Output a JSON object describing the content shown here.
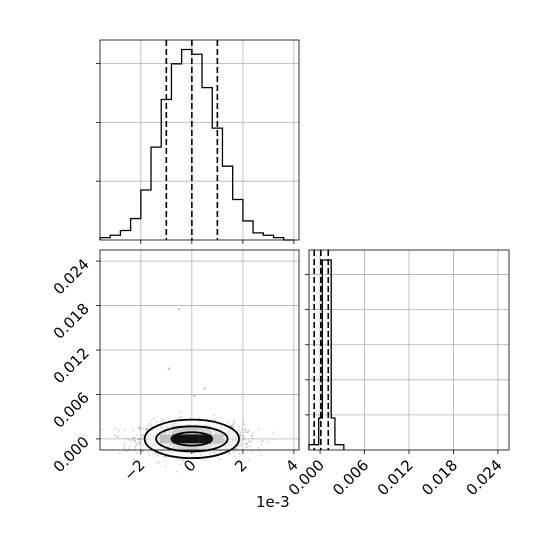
{
  "chart_data": [
    {
      "type": "histogram",
      "panel": "top-left",
      "variable_index": 0,
      "xlim": [
        -3.6,
        4.2
      ],
      "x_multiplier_label": "1e-3",
      "x_ticks": [
        -2,
        0,
        2,
        4
      ],
      "y_tick_count": 3,
      "grid": true,
      "bin_edges": [
        -3.6,
        -3.2,
        -2.8,
        -2.4,
        -2.0,
        -1.6,
        -1.2,
        -0.8,
        -0.4,
        0.0,
        0.4,
        0.8,
        1.2,
        1.6,
        2.0,
        2.4,
        2.8,
        3.2,
        3.6,
        4.0
      ],
      "counts": [
        1,
        2,
        4,
        9,
        21,
        39,
        59,
        74,
        80,
        78,
        64,
        47,
        31,
        17,
        8,
        3,
        2,
        1,
        0
      ],
      "ymax": 84,
      "quantiles": [
        -1.0,
        0.0,
        1.0
      ]
    },
    {
      "type": "histogram2d_contour",
      "panel": "bottom-left",
      "xlim": [
        -3.6,
        4.2
      ],
      "ylim": [
        -0.0015,
        0.0255
      ],
      "x_ticks": [
        -2,
        0,
        2,
        4
      ],
      "x_ticks_label": [
        "−2",
        "0",
        "2",
        "4"
      ],
      "x_multiplier_label": "1e-3",
      "y_ticks": [
        0.0,
        0.006,
        0.012,
        0.018,
        0.024
      ],
      "y_ticks_label": [
        "0.000",
        "0.006",
        "0.012",
        "0.018",
        "0.024"
      ],
      "grid": true,
      "center": [
        0.0,
        0.0
      ],
      "contour_levels": [
        {
          "rx": 0.8,
          "ry": 0.0009
        },
        {
          "rx": 1.4,
          "ry": 0.0017
        },
        {
          "rx": 1.85,
          "ry": 0.0026
        }
      ],
      "dense_cells": [
        {
          "x": -0.5,
          "y": 0.0,
          "v": 1.0
        },
        {
          "x": 0.0,
          "y": 0.0,
          "v": 1.0
        },
        {
          "x": 0.5,
          "y": 0.0,
          "v": 0.85
        },
        {
          "x": -1.0,
          "y": 0.0,
          "v": 0.55
        },
        {
          "x": 1.0,
          "y": 0.0,
          "v": 0.5
        },
        {
          "x": -0.5,
          "y": 0.0012,
          "v": 0.45
        },
        {
          "x": 0.0,
          "y": 0.0012,
          "v": 0.5
        },
        {
          "x": 0.5,
          "y": 0.0012,
          "v": 0.4
        },
        {
          "x": -0.5,
          "y": -0.0012,
          "v": 0.35
        },
        {
          "x": 0.0,
          "y": -0.0012,
          "v": 0.4
        },
        {
          "x": 0.5,
          "y": -0.0012,
          "v": 0.3
        }
      ],
      "outliers": [
        {
          "x": -0.5,
          "y": 0.0175
        },
        {
          "x": -0.9,
          "y": 0.0095
        },
        {
          "x": 0.5,
          "y": 0.0068
        },
        {
          "x": 0.1,
          "y": 0.0058
        }
      ]
    },
    {
      "type": "histogram",
      "panel": "bottom-right",
      "variable_index": 1,
      "xlim": [
        -0.0015,
        0.0255
      ],
      "x_ticks": [
        0.0,
        0.006,
        0.012,
        0.018,
        0.024
      ],
      "x_ticks_label": [
        "0.000",
        "0.006",
        "0.012",
        "0.018",
        "0.024"
      ],
      "y_tick_count": 5,
      "grid": true,
      "bin_edges": [
        -0.0015,
        0.0,
        0.0015,
        0.003,
        0.0045
      ],
      "counts": [
        2,
        48,
        285,
        0
      ],
      "extra_bins": [
        {
          "x0": -0.0015,
          "x1": -0.0002,
          "count": 8
        },
        {
          "x0": -0.0002,
          "x1": 0.0003,
          "count": 48
        },
        {
          "x0": 0.0003,
          "x1": 0.0015,
          "count": 285
        },
        {
          "x0": 0.0015,
          "x1": 0.002,
          "count": 48
        },
        {
          "x0": 0.002,
          "x1": 0.0032,
          "count": 8
        }
      ],
      "ymax": 300,
      "quantiles": [
        -0.0008,
        0.0001,
        0.0011
      ]
    }
  ]
}
